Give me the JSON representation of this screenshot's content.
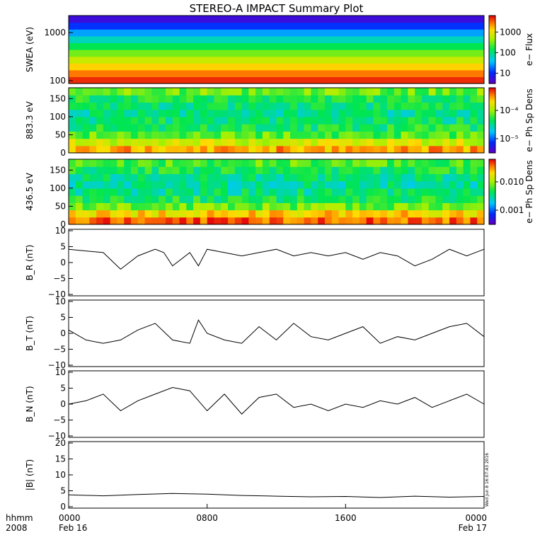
{
  "chart_data": [
    {
      "type": "heatmap",
      "title": "STEREO-A IMPACT Summary Plot",
      "ylabel": "SWEA (eV)",
      "yscale": "log",
      "ylim": [
        100,
        2000
      ],
      "yticks": [
        "1000",
        "100"
      ],
      "colorbar": {
        "label": "e− Flux",
        "scale": "log",
        "ticks": [
          "1000",
          "100",
          "10"
        ]
      },
      "rows_low_to_high_energy": [
        0.03,
        0.1,
        0.19,
        0.29,
        0.39,
        0.5,
        0.61,
        0.72,
        0.84,
        0.95
      ]
    },
    {
      "type": "heatmap",
      "ylabel": "883.3 eV",
      "ylim": [
        0,
        180
      ],
      "yticks": [
        "150",
        "100",
        "50",
        "0"
      ],
      "colorbar": {
        "label": "e− Ph Sp Dens",
        "scale": "log",
        "ticks": [
          "10⁻⁴",
          "10⁻⁵"
        ]
      },
      "pitch_profile": [
        0.85,
        0.72,
        0.58,
        0.5,
        0.47,
        0.45,
        0.47,
        0.52,
        0.6
      ]
    },
    {
      "type": "heatmap",
      "ylabel": "436.5 eV",
      "ylim": [
        0,
        180
      ],
      "yticks": [
        "150",
        "100",
        "50",
        "0"
      ],
      "colorbar": {
        "label": "e− Ph Sp Dens",
        "scale": "log",
        "ticks": [
          "0.010",
          "0.001"
        ]
      },
      "pitch_profile": [
        0.92,
        0.8,
        0.6,
        0.5,
        0.45,
        0.43,
        0.45,
        0.5,
        0.57
      ]
    },
    {
      "type": "line",
      "ylabel": "B_R (nT)",
      "ylim": [
        -10,
        10
      ],
      "yticks": [
        "10",
        "5",
        "0",
        "−5",
        "−10"
      ],
      "x": [
        0,
        1,
        2,
        3,
        4,
        5,
        5.5,
        6,
        7,
        7.5,
        8,
        9,
        10,
        11,
        12,
        13,
        14,
        15,
        16,
        17,
        18,
        19,
        20,
        21,
        22,
        23,
        24
      ],
      "y": [
        4,
        3.5,
        3,
        -2,
        2,
        4,
        3,
        -1,
        3,
        -1,
        4,
        3,
        2,
        3,
        4,
        2,
        3,
        2,
        3,
        1,
        3,
        2,
        -1,
        1,
        4,
        2,
        4
      ]
    },
    {
      "type": "line",
      "ylabel": "B_T (nT)",
      "ylim": [
        -10,
        10
      ],
      "yticks": [
        "10",
        "5",
        "0",
        "−5",
        "−10"
      ],
      "x": [
        0,
        1,
        2,
        3,
        4,
        5,
        6,
        7,
        7.5,
        8,
        9,
        10,
        11,
        12,
        13,
        14,
        15,
        16,
        17,
        18,
        19,
        20,
        21,
        22,
        23,
        24
      ],
      "y": [
        1,
        -2,
        -3,
        -2,
        1,
        3,
        -2,
        -3,
        4,
        0,
        -2,
        -3,
        2,
        -2,
        3,
        -1,
        -2,
        0,
        2,
        -3,
        -1,
        -2,
        0,
        2,
        3,
        -1
      ]
    },
    {
      "type": "line",
      "ylabel": "B_N (nT)",
      "ylim": [
        -10,
        10
      ],
      "yticks": [
        "10",
        "5",
        "0",
        "−5",
        "−10"
      ],
      "x": [
        0,
        1,
        2,
        3,
        4,
        5,
        6,
        7,
        8,
        9,
        10,
        11,
        12,
        13,
        14,
        15,
        16,
        17,
        18,
        19,
        20,
        21,
        22,
        23,
        24
      ],
      "y": [
        0,
        1,
        3,
        -2,
        1,
        3,
        5,
        4,
        -2,
        3,
        -3,
        2,
        3,
        -1,
        0,
        -2,
        0,
        -1,
        1,
        0,
        2,
        -1,
        1,
        3,
        0
      ]
    },
    {
      "type": "line",
      "ylabel": "|B| (nT)",
      "ylim": [
        0,
        20
      ],
      "yticks": [
        "20",
        "15",
        "10",
        "5",
        "0"
      ],
      "x": [
        0,
        2,
        4,
        6,
        8,
        10,
        12,
        14,
        16,
        18,
        20,
        22,
        24
      ],
      "y": [
        4,
        3.7,
        4.1,
        4.4,
        4.2,
        3.8,
        3.6,
        3.4,
        3.5,
        3.2,
        3.6,
        3.3,
        3.5
      ]
    }
  ],
  "xaxis": {
    "xlim": [
      0,
      24
    ],
    "ticks": [
      {
        "x": 0,
        "label": "0000",
        "sub": "Feb 16"
      },
      {
        "x": 8,
        "label": "0800",
        "sub": ""
      },
      {
        "x": 16,
        "label": "1600",
        "sub": ""
      },
      {
        "x": 24,
        "label": "0000",
        "sub": "Feb 17"
      }
    ],
    "label_top": "hhmm",
    "label_bottom": "2008"
  },
  "timestamp": "Wed Jun  8 16:07:43 2016"
}
